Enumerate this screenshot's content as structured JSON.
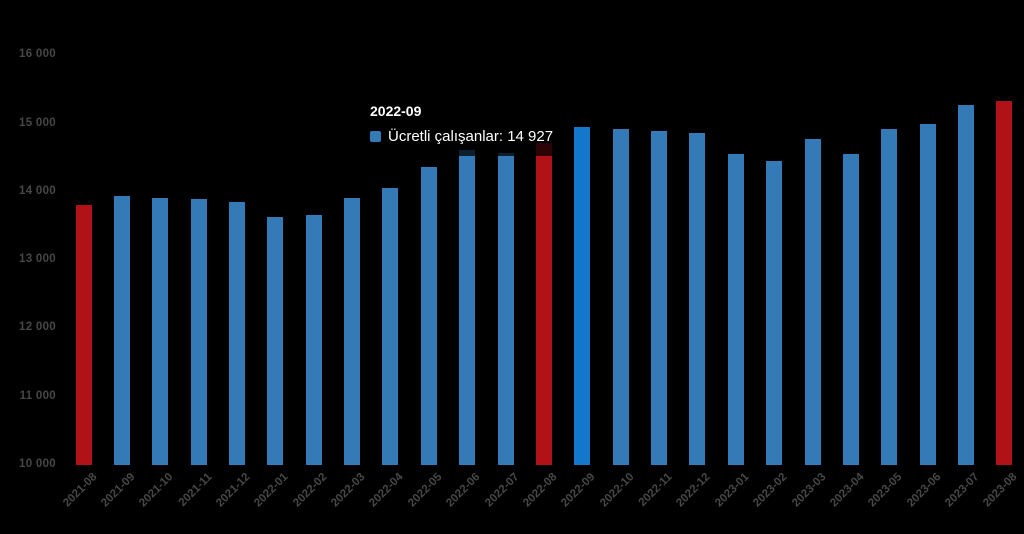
{
  "chart_data": {
    "type": "bar",
    "title": "",
    "xlabel": "",
    "ylabel": "",
    "categories": [
      "2021-08",
      "2021-09",
      "2021-10",
      "2021-11",
      "2021-12",
      "2022-01",
      "2022-02",
      "2022-03",
      "2022-04",
      "2022-05",
      "2022-06",
      "2022-07",
      "2022-08",
      "2022-09",
      "2022-10",
      "2022-11",
      "2022-12",
      "2023-01",
      "2023-02",
      "2023-03",
      "2023-04",
      "2023-05",
      "2023-06",
      "2023-07",
      "2023-08"
    ],
    "series": [
      {
        "name": "Ücretli çalışanlar",
        "values": [
          13790,
          13920,
          13900,
          13880,
          13830,
          13610,
          13650,
          13890,
          14040,
          14350,
          14600,
          14550,
          14700,
          14927,
          14910,
          14870,
          14840,
          14540,
          14440,
          14760,
          14540,
          14910,
          14980,
          15250,
          15320
        ]
      }
    ],
    "ylim": [
      10000,
      16000
    ],
    "ytick_values": [
      10000,
      11000,
      12000,
      13000,
      14000,
      15000,
      16000
    ],
    "ytick_labels": [
      "10 000",
      "11 000",
      "12 000",
      "13 000",
      "14 000",
      "15 000",
      "16 000"
    ],
    "grid": false,
    "legend_position": "none",
    "red_indices": [
      0,
      12,
      24
    ],
    "highlight_index": 13,
    "highlighted_category": "2022-09",
    "highlighted_value": "14 927"
  },
  "tooltip": {
    "title": "2022-09",
    "text": "Ücretli çalışanlar: 14 927"
  },
  "colors": {
    "background": "#000000",
    "bar_blue": "#347AB6",
    "bar_red": "#B11217",
    "bar_highlight": "#1377CB",
    "axis_label": "#474747",
    "tooltip_text": "#FFFFFF",
    "tooltip_marker": "#347AB6"
  }
}
